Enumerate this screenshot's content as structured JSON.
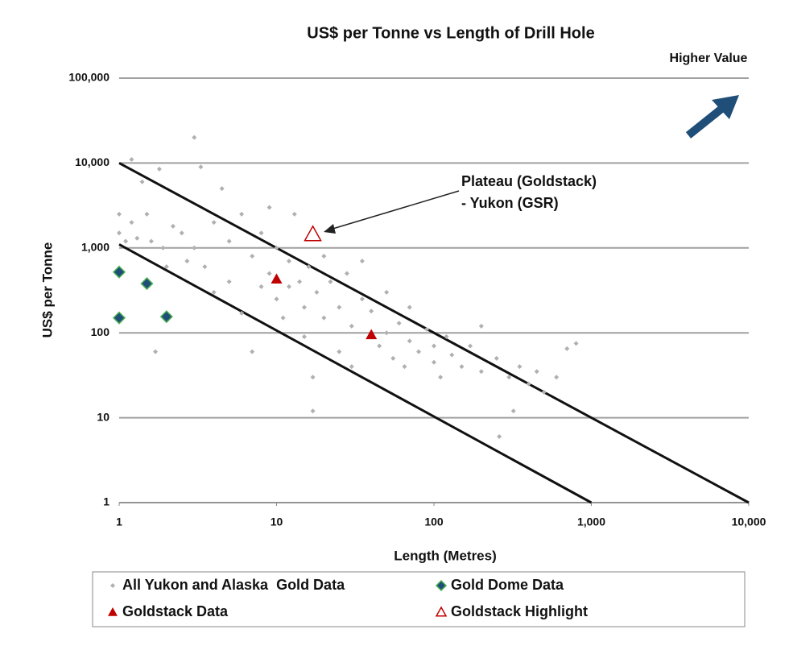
{
  "chart_data": {
    "type": "scatter",
    "title": "US$ per Tonne vs Length of Drill Hole",
    "x_label": "Length (Metres)",
    "y_label": "US$ per Tonne",
    "corner_note": "Higher Value",
    "annotation": [
      "Plateau (Goldstack)",
      "- Yukon (GSR)"
    ],
    "log_x": true,
    "log_y": true,
    "grid": true,
    "legend": "bottom",
    "xlim": [
      1,
      10000
    ],
    "ylim": [
      1,
      100000
    ],
    "xticks": [
      1,
      10,
      100,
      {
        "value": 1000,
        "label": "1,000"
      },
      {
        "value": 10000,
        "label": "10,000"
      }
    ],
    "yticks": [
      1,
      10,
      100,
      {
        "value": 1000,
        "label": "1,000"
      },
      {
        "value": 10000,
        "label": "10,000"
      },
      {
        "value": 100000,
        "label": "100,000"
      }
    ],
    "reference_lines": [
      {
        "color": "#111111",
        "x": [
          1,
          10000
        ],
        "y": [
          10000,
          1
        ]
      },
      {
        "color": "#111111",
        "x": [
          1,
          1000
        ],
        "y": [
          1100,
          1
        ]
      }
    ],
    "series": [
      {
        "name": "All Yukon and Alaska  Gold Data",
        "color": "#b0b0b0",
        "marker": "diamond",
        "x": [
          1,
          1,
          1.1,
          1.2,
          1.2,
          1.3,
          1.4,
          1.5,
          1.6,
          1.7,
          1.8,
          1.9,
          2,
          2.2,
          2.5,
          2.7,
          3,
          3,
          3.3,
          3.5,
          4,
          4,
          4.5,
          5,
          5,
          6,
          6,
          7,
          7,
          8,
          8,
          9,
          9,
          10,
          10,
          11,
          12,
          12,
          13,
          14,
          15,
          15,
          16,
          17,
          17,
          18,
          20,
          20,
          22,
          25,
          25,
          28,
          30,
          30,
          35,
          35,
          40,
          45,
          50,
          50,
          55,
          60,
          65,
          70,
          70,
          80,
          90,
          100,
          100,
          110,
          120,
          130,
          150,
          170,
          200,
          200,
          250,
          260,
          300,
          350,
          400,
          450,
          500,
          600,
          700,
          800,
          320
        ],
        "y": [
          2500,
          1500,
          1200,
          11000,
          2000,
          1300,
          6000,
          2500,
          1200,
          60,
          8500,
          1000,
          600,
          1800,
          1500,
          700,
          20000,
          1000,
          9000,
          600,
          2000,
          300,
          5000,
          1200,
          400,
          2500,
          170,
          800,
          60,
          1500,
          350,
          3000,
          500,
          1000,
          250,
          150,
          700,
          350,
          2500,
          400,
          200,
          90,
          600,
          30,
          12,
          300,
          800,
          150,
          400,
          200,
          60,
          500,
          120,
          40,
          700,
          250,
          180,
          70,
          300,
          100,
          50,
          130,
          40,
          200,
          80,
          60,
          110,
          45,
          70,
          30,
          90,
          55,
          40,
          70,
          35,
          120,
          50,
          6,
          30,
          40,
          25,
          35,
          20,
          30,
          65,
          75,
          12
        ]
      },
      {
        "name": "Gold Dome Data",
        "color": "#1f4e79",
        "marker": "diamond",
        "x": [
          1,
          1,
          1.5,
          2
        ],
        "y": [
          520,
          150,
          380,
          155
        ]
      },
      {
        "name": "Goldstack Data",
        "color": "#c00000",
        "marker": "triangle",
        "x": [
          10,
          40
        ],
        "y": [
          430,
          95
        ]
      },
      {
        "name": "Goldstack Highlight",
        "color": "#c00000",
        "marker": "triangle-open",
        "x": [
          17
        ],
        "y": [
          1450
        ]
      }
    ]
  }
}
